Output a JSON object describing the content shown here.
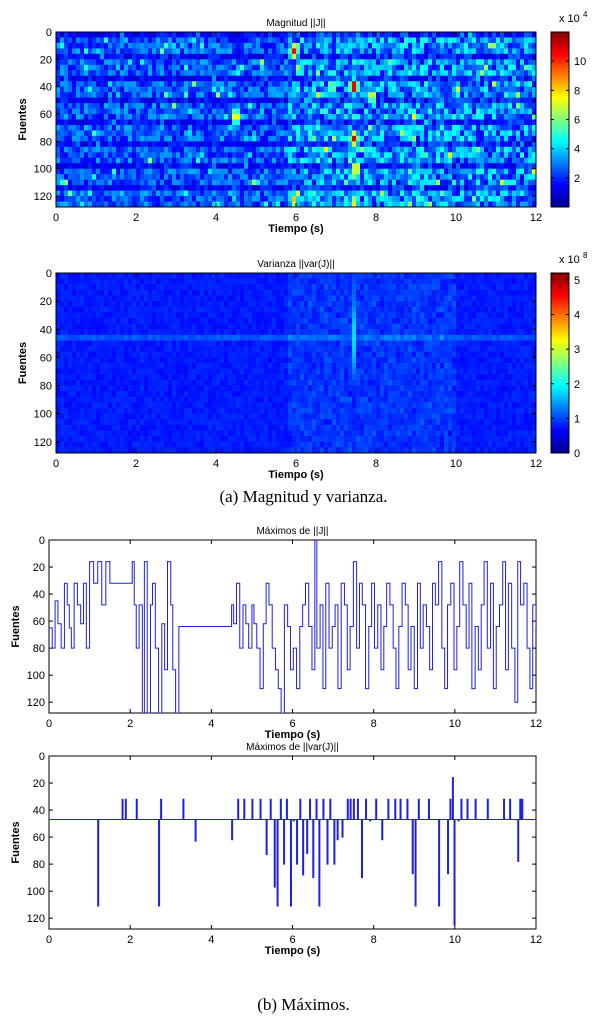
{
  "captions": {
    "a": "(a)    Magnitud y varianza.",
    "b": "(b)    Máximos."
  },
  "chart_data": [
    {
      "type": "heatmap",
      "title": "Magnitud ||J||",
      "xlabel": "Tiempo (s)",
      "ylabel": "Fuentes",
      "xlim": [
        0,
        12
      ],
      "ylim": [
        0,
        128
      ],
      "y_reversed": true,
      "xticks": [
        0,
        2,
        4,
        6,
        8,
        10,
        12
      ],
      "yticks": [
        0,
        20,
        40,
        60,
        80,
        100,
        120
      ],
      "colormap": "jet",
      "colorbar": {
        "min": 0,
        "max": 12,
        "ticks": [
          2,
          4,
          6,
          8,
          10
        ],
        "multiplier": "x 10",
        "exponent": "4"
      },
      "hotspots": [
        {
          "t": 5.95,
          "fuente": 14,
          "value": 10.5
        },
        {
          "t": 5.95,
          "fuente": 123,
          "value": 8.5
        },
        {
          "t": 4.5,
          "fuente": 62,
          "value": 9
        },
        {
          "t": 7.45,
          "fuente": 40,
          "value": 12
        },
        {
          "t": 7.45,
          "fuente": 78,
          "value": 11
        },
        {
          "t": 7.5,
          "fuente": 100,
          "value": 9
        },
        {
          "t": 7.9,
          "fuente": 47,
          "value": 8
        },
        {
          "t": 6.9,
          "fuente": 40,
          "value": 7
        },
        {
          "t": 7.45,
          "fuente": 125,
          "value": 8
        }
      ]
    },
    {
      "type": "heatmap",
      "title": "Varianza ||var(J)||",
      "xlabel": "Tiempo (s)",
      "ylabel": "Fuentes",
      "xlim": [
        0,
        12
      ],
      "ylim": [
        0,
        128
      ],
      "y_reversed": true,
      "xticks": [
        0,
        2,
        4,
        6,
        8,
        10,
        12
      ],
      "yticks": [
        0,
        20,
        40,
        60,
        80,
        100,
        120
      ],
      "colormap": "jet",
      "colorbar": {
        "min": 0,
        "max": 5.2,
        "ticks": [
          0,
          1,
          2,
          3,
          4,
          5
        ],
        "multiplier": "x 10",
        "exponent": "8"
      },
      "hotspots": [
        {
          "t": 7.45,
          "fuente": 46,
          "value": 1.8
        },
        {
          "t": 7.45,
          "fuente": 20,
          "value": 1.2
        },
        {
          "t": 6.5,
          "fuente": 44,
          "value": 1.0
        }
      ]
    },
    {
      "type": "line",
      "title": "Máximos de ||J||",
      "xlabel": "Tiempo (s)",
      "ylabel": "Fuentes",
      "xlim": [
        0,
        12
      ],
      "ylim": [
        0,
        128
      ],
      "y_reversed": true,
      "xticks": [
        0,
        2,
        4,
        6,
        8,
        10,
        12
      ],
      "yticks": [
        0,
        20,
        40,
        60,
        80,
        100,
        120
      ],
      "color": "#1f1fdf",
      "x": [
        0,
        0.08,
        0.15,
        0.22,
        0.3,
        0.38,
        0.45,
        0.5,
        0.55,
        0.62,
        0.7,
        0.78,
        0.85,
        0.92,
        1.0,
        1.1,
        1.2,
        1.3,
        1.4,
        1.5,
        1.55,
        1.62,
        1.7,
        1.8,
        1.9,
        2.0,
        2.05,
        2.1,
        2.15,
        2.22,
        2.3,
        2.35,
        2.42,
        2.5,
        2.55,
        2.62,
        2.7,
        2.78,
        2.85,
        2.92,
        3.0,
        3.05,
        3.12,
        3.2,
        3.25,
        3.3,
        3.35,
        3.4,
        3.5,
        3.8,
        4.0,
        4.2,
        4.4,
        4.5,
        4.55,
        4.62,
        4.7,
        4.78,
        4.85,
        4.92,
        5.0,
        5.05,
        5.12,
        5.2,
        5.28,
        5.35,
        5.42,
        5.5,
        5.58,
        5.65,
        5.72,
        5.8,
        5.88,
        5.95,
        6.02,
        6.1,
        6.18,
        6.25,
        6.32,
        6.4,
        6.48,
        6.55,
        6.6,
        6.68,
        6.75,
        6.82,
        6.9,
        6.98,
        7.05,
        7.12,
        7.2,
        7.28,
        7.35,
        7.42,
        7.5,
        7.58,
        7.65,
        7.72,
        7.8,
        7.88,
        7.95,
        8.02,
        8.1,
        8.18,
        8.25,
        8.32,
        8.4,
        8.48,
        8.55,
        8.62,
        8.7,
        8.78,
        8.85,
        8.92,
        9.0,
        9.08,
        9.15,
        9.22,
        9.3,
        9.38,
        9.45,
        9.52,
        9.6,
        9.68,
        9.75,
        9.82,
        9.9,
        9.98,
        10.05,
        10.12,
        10.2,
        10.28,
        10.35,
        10.42,
        10.5,
        10.58,
        10.65,
        10.72,
        10.8,
        10.88,
        10.95,
        11.02,
        11.1,
        11.18,
        11.25,
        11.32,
        11.4,
        11.48,
        11.55,
        11.62,
        11.7,
        11.78,
        11.85,
        11.92,
        12.0
      ],
      "y": [
        65,
        80,
        45,
        62,
        80,
        32,
        48,
        65,
        80,
        32,
        48,
        62,
        32,
        80,
        16,
        32,
        16,
        48,
        16,
        32,
        32,
        32,
        32,
        32,
        32,
        32,
        16,
        48,
        80,
        48,
        128,
        16,
        128,
        48,
        32,
        80,
        128,
        62,
        96,
        16,
        48,
        96,
        128,
        64,
        64,
        64,
        64,
        64,
        64,
        64,
        64,
        64,
        64,
        48,
        62,
        32,
        80,
        48,
        62,
        80,
        48,
        62,
        80,
        110,
        62,
        32,
        48,
        80,
        96,
        110,
        128,
        48,
        64,
        96,
        80,
        110,
        64,
        48,
        32,
        64,
        96,
        0,
        80,
        48,
        110,
        32,
        80,
        64,
        48,
        110,
        32,
        48,
        96,
        64,
        16,
        80,
        32,
        48,
        110,
        64,
        32,
        80,
        48,
        96,
        64,
        32,
        48,
        80,
        110,
        64,
        32,
        48,
        96,
        64,
        110,
        32,
        80,
        48,
        64,
        96,
        32,
        48,
        16,
        80,
        110,
        48,
        32,
        96,
        64,
        16,
        48,
        80,
        32,
        110,
        64,
        96,
        48,
        16,
        80,
        32,
        110,
        64,
        48,
        16,
        96,
        32,
        80,
        120,
        16,
        48,
        32,
        80,
        110,
        48,
        64
      ],
      "steps": true
    },
    {
      "type": "line",
      "title": "Máximos de ||var(J)||",
      "xlabel": "Tiempo (s)",
      "ylabel": "Fuentes",
      "xlim": [
        0,
        12
      ],
      "ylim": [
        0,
        128
      ],
      "y_reversed": true,
      "xticks": [
        0,
        2,
        4,
        6,
        8,
        10,
        12
      ],
      "yticks": [
        0,
        20,
        40,
        60,
        80,
        100,
        120
      ],
      "color": "#1f1fdf",
      "baseline": 47,
      "spikes": [
        [
          1.2,
          111
        ],
        [
          1.8,
          32
        ],
        [
          1.88,
          32
        ],
        [
          2.15,
          32
        ],
        [
          2.7,
          111
        ],
        [
          2.75,
          32
        ],
        [
          3.3,
          32
        ],
        [
          3.6,
          63
        ],
        [
          4.5,
          62
        ],
        [
          4.65,
          32
        ],
        [
          4.8,
          32
        ],
        [
          5.0,
          32
        ],
        [
          5.2,
          32
        ],
        [
          5.35,
          73
        ],
        [
          5.45,
          32
        ],
        [
          5.55,
          97
        ],
        [
          5.62,
          111
        ],
        [
          5.7,
          32
        ],
        [
          5.78,
          80
        ],
        [
          5.85,
          32
        ],
        [
          5.95,
          111
        ],
        [
          6.02,
          48
        ],
        [
          6.1,
          80
        ],
        [
          6.18,
          32
        ],
        [
          6.25,
          88
        ],
        [
          6.35,
          72
        ],
        [
          6.42,
          32
        ],
        [
          6.5,
          90
        ],
        [
          6.58,
          32
        ],
        [
          6.65,
          111
        ],
        [
          6.75,
          32
        ],
        [
          6.85,
          80
        ],
        [
          6.92,
          32
        ],
        [
          7.02,
          80
        ],
        [
          7.1,
          62
        ],
        [
          7.22,
          60
        ],
        [
          7.35,
          32
        ],
        [
          7.42,
          32
        ],
        [
          7.5,
          32
        ],
        [
          7.6,
          32
        ],
        [
          7.7,
          90
        ],
        [
          7.8,
          32
        ],
        [
          7.9,
          48
        ],
        [
          8.05,
          32
        ],
        [
          8.2,
          62
        ],
        [
          8.35,
          32
        ],
        [
          8.52,
          32
        ],
        [
          8.65,
          32
        ],
        [
          8.82,
          32
        ],
        [
          8.95,
          87
        ],
        [
          9.02,
          111
        ],
        [
          9.1,
          32
        ],
        [
          9.35,
          32
        ],
        [
          9.6,
          111
        ],
        [
          9.82,
          87
        ],
        [
          9.88,
          32
        ],
        [
          9.94,
          16
        ],
        [
          9.98,
          125
        ],
        [
          10.08,
          48
        ],
        [
          10.15,
          32
        ],
        [
          10.3,
          32
        ],
        [
          10.5,
          32
        ],
        [
          10.8,
          32
        ],
        [
          11.2,
          32
        ],
        [
          11.35,
          32
        ],
        [
          11.55,
          78
        ],
        [
          11.6,
          32
        ],
        [
          11.65,
          32
        ]
      ]
    }
  ]
}
